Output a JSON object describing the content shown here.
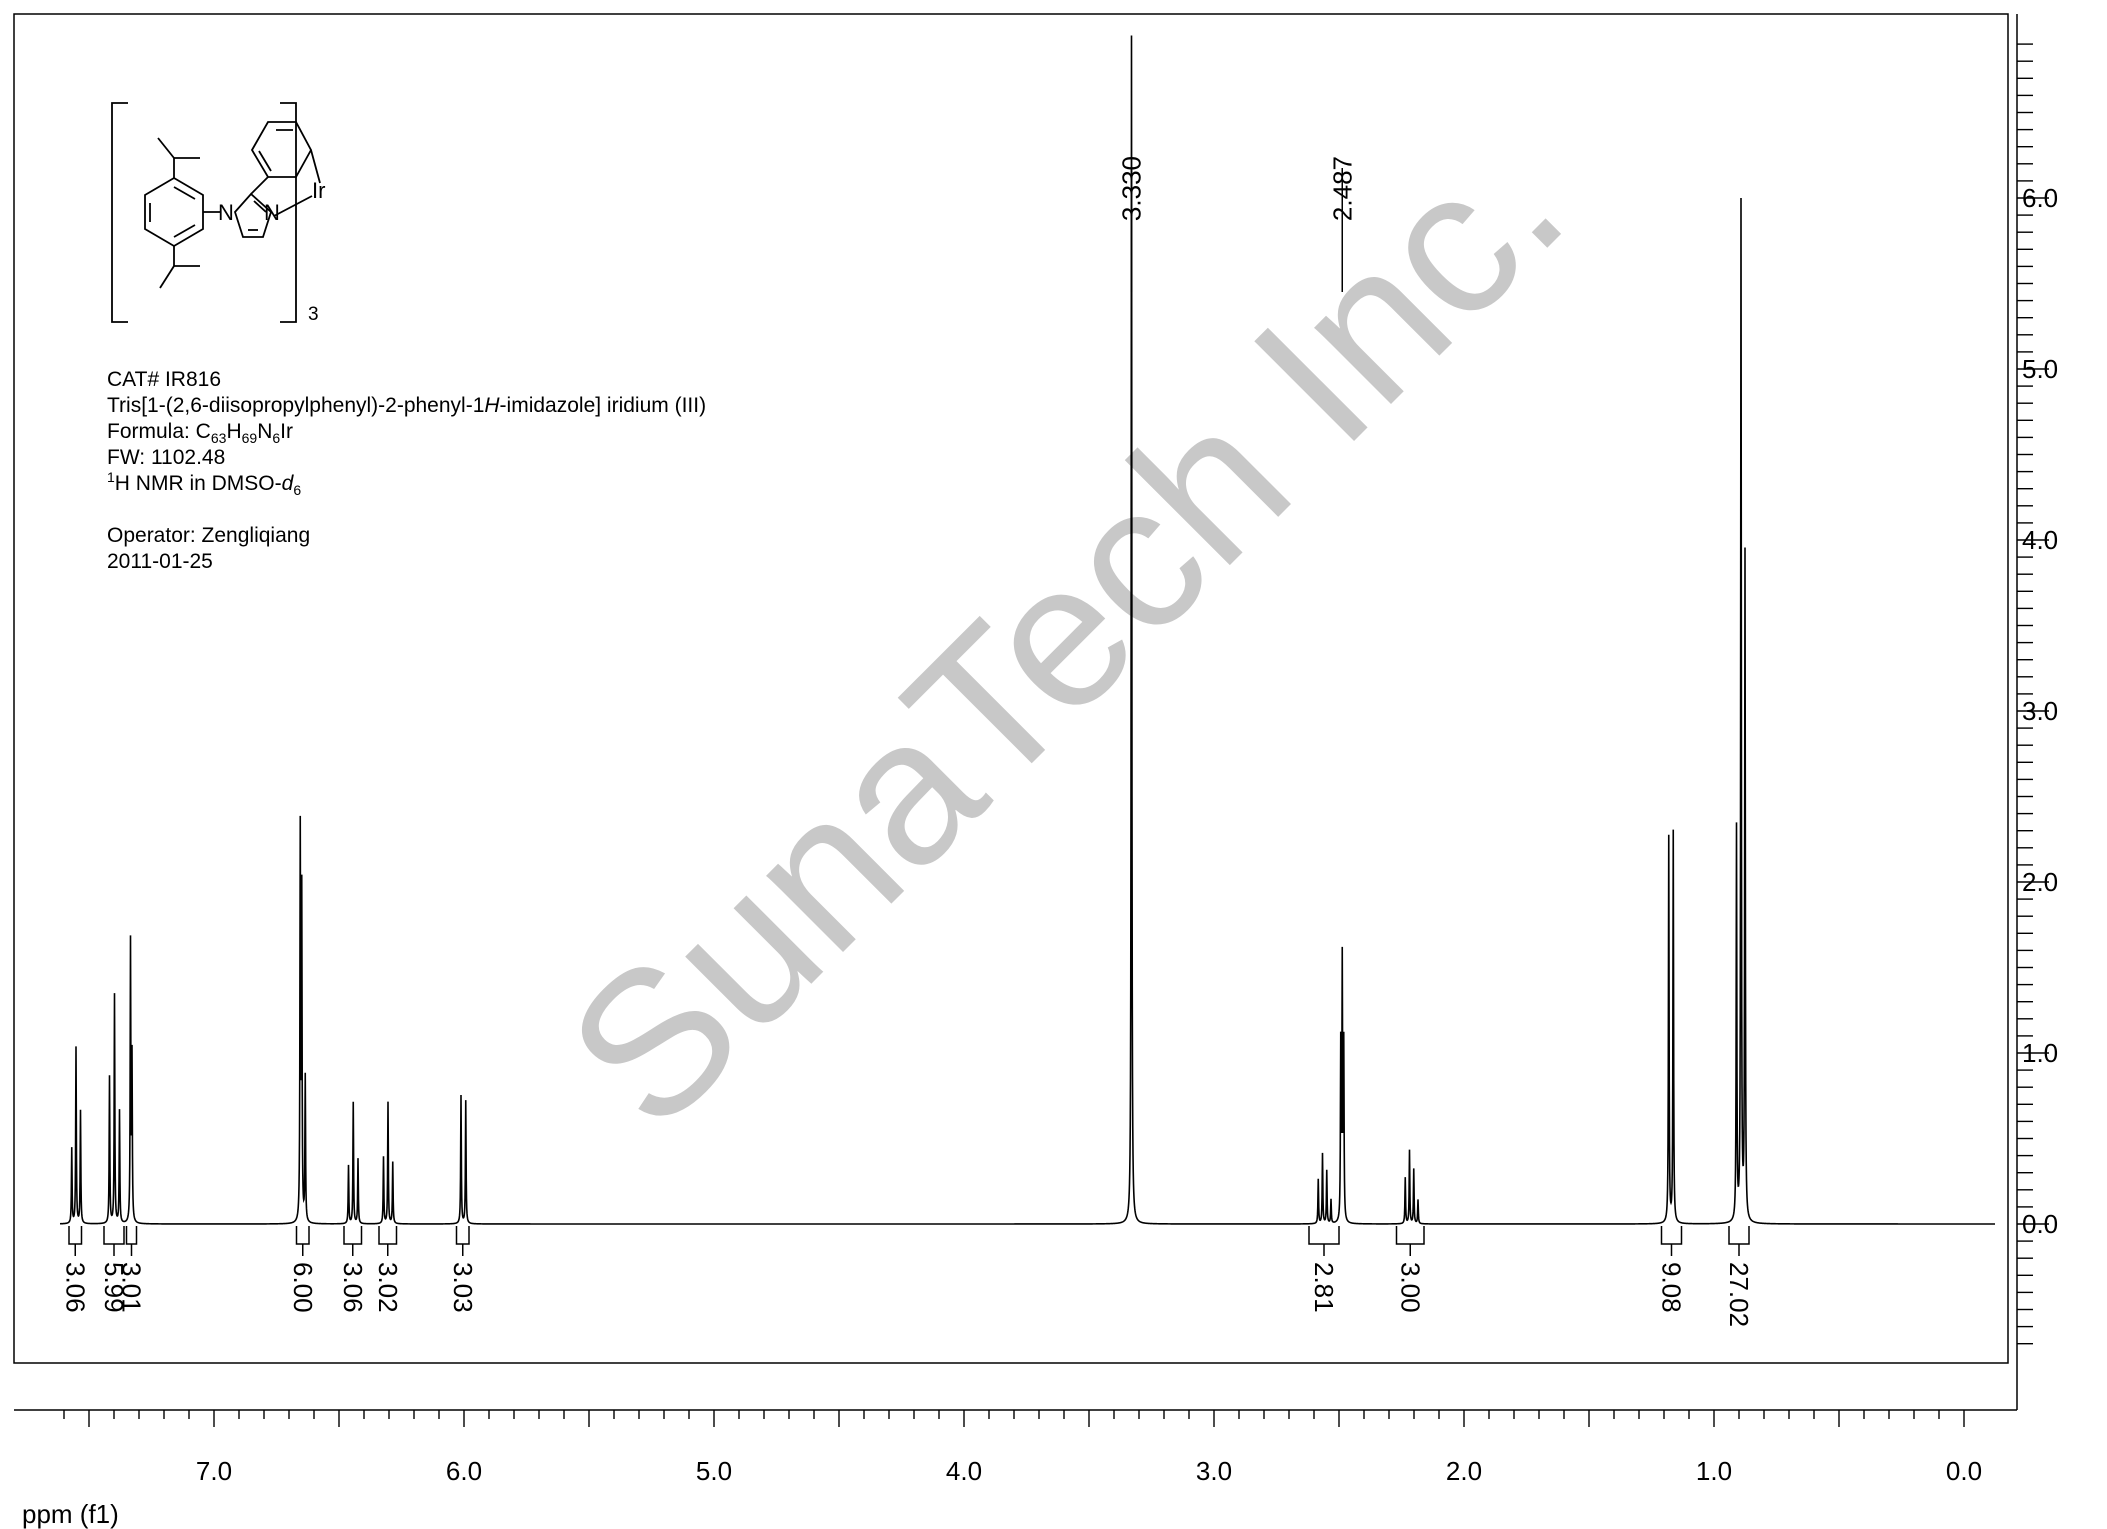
{
  "compound": {
    "cat_no": "CAT# IR816",
    "name_pre": "Tris[1-(2,6-diisopropylphenyl)-2-phenyl-1",
    "name_ital": "H",
    "name_post": "-imidazole] iridium (III)",
    "formula_label": "Formula: C",
    "formula_c": "63",
    "formula_h_label": "H",
    "formula_h": "69",
    "formula_n_label": "N",
    "formula_n": "6",
    "formula_end": "Ir",
    "fw": "FW: 1102.48",
    "nmr_sup": "1",
    "nmr_text": "H NMR in DMSO-",
    "nmr_solvent": "d",
    "nmr_solvent_sub": "6",
    "operator": "Operator: Zengliqiang",
    "date": "2011-01-25"
  },
  "structure": {
    "atom_n1": "N",
    "atom_n2": "N",
    "atom_ir": "Ir",
    "subscript": "3"
  },
  "watermark": "SunaTech Inc.",
  "colors": {
    "line": "#000000",
    "watermark": "#c8c8c8",
    "background": "#ffffff"
  },
  "chart_data": {
    "type": "line",
    "title": "",
    "xlabel": "ppm (f1)",
    "ylabel": "",
    "xlim": [
      7.75,
      -0.15
    ],
    "ylim": [
      -1.0,
      6.95
    ],
    "x_ticks": [
      "7.0",
      "6.0",
      "5.0",
      "4.0",
      "3.0",
      "2.0",
      "1.0",
      "0.0"
    ],
    "x_tick_values": [
      7,
      6,
      5,
      4,
      3,
      2,
      1,
      0
    ],
    "y_ticks": [
      "0.0",
      "1.0",
      "2.0",
      "3.0",
      "4.0",
      "5.0",
      "6.0"
    ],
    "y_tick_values": [
      0,
      1,
      2,
      3,
      4,
      5,
      6
    ],
    "grid": false,
    "peaks": [
      {
        "x": 7.569,
        "h": 0.44
      },
      {
        "x": 7.552,
        "h": 1.03
      },
      {
        "x": 7.534,
        "h": 0.66
      },
      {
        "x": 7.418,
        "h": 0.86
      },
      {
        "x": 7.398,
        "h": 1.34
      },
      {
        "x": 7.378,
        "h": 0.66
      },
      {
        "x": 7.334,
        "h": 1.63
      },
      {
        "x": 7.328,
        "h": 0.95
      },
      {
        "x": 6.655,
        "h": 2.27
      },
      {
        "x": 6.649,
        "h": 1.9
      },
      {
        "x": 6.635,
        "h": 0.85
      },
      {
        "x": 6.462,
        "h": 0.34
      },
      {
        "x": 6.443,
        "h": 0.71
      },
      {
        "x": 6.424,
        "h": 0.38
      },
      {
        "x": 6.322,
        "h": 0.39
      },
      {
        "x": 6.304,
        "h": 0.71
      },
      {
        "x": 6.285,
        "h": 0.36
      },
      {
        "x": 6.012,
        "h": 0.75
      },
      {
        "x": 5.993,
        "h": 0.72
      },
      {
        "x": 3.33,
        "h": 6.95
      },
      {
        "x": 2.583,
        "h": 0.26
      },
      {
        "x": 2.566,
        "h": 0.41
      },
      {
        "x": 2.549,
        "h": 0.31
      },
      {
        "x": 2.532,
        "h": 0.14
      },
      {
        "x": 2.493,
        "h": 1.02
      },
      {
        "x": 2.487,
        "h": 1.5
      },
      {
        "x": 2.481,
        "h": 1.02
      },
      {
        "x": 2.235,
        "h": 0.27
      },
      {
        "x": 2.218,
        "h": 0.43
      },
      {
        "x": 2.201,
        "h": 0.32
      },
      {
        "x": 2.184,
        "h": 0.14
      },
      {
        "x": 1.181,
        "h": 2.26
      },
      {
        "x": 1.163,
        "h": 2.29
      },
      {
        "x": 0.91,
        "h": 2.3
      },
      {
        "x": 0.892,
        "h": 5.95
      },
      {
        "x": 0.876,
        "h": 3.9
      }
    ],
    "integrals": [
      {
        "x_start": 7.58,
        "x_end": 7.53,
        "label": "3.06"
      },
      {
        "x_start": 7.44,
        "x_end": 7.36,
        "label": "5.99"
      },
      {
        "x_start": 7.35,
        "x_end": 7.31,
        "label": "3.01"
      },
      {
        "x_start": 6.67,
        "x_end": 6.62,
        "label": "6.00"
      },
      {
        "x_start": 6.48,
        "x_end": 6.41,
        "label": "3.06"
      },
      {
        "x_start": 6.34,
        "x_end": 6.27,
        "label": "3.02"
      },
      {
        "x_start": 6.03,
        "x_end": 5.98,
        "label": "3.03"
      },
      {
        "x_start": 2.62,
        "x_end": 2.5,
        "label": "2.81"
      },
      {
        "x_start": 2.27,
        "x_end": 2.16,
        "label": "3.00"
      },
      {
        "x_start": 1.21,
        "x_end": 1.13,
        "label": "9.08"
      },
      {
        "x_start": 0.94,
        "x_end": 0.86,
        "label": "27.02"
      }
    ],
    "peak_labels": [
      {
        "x": 3.33,
        "label": "3.330"
      },
      {
        "x": 2.487,
        "label": "2.487"
      }
    ]
  }
}
